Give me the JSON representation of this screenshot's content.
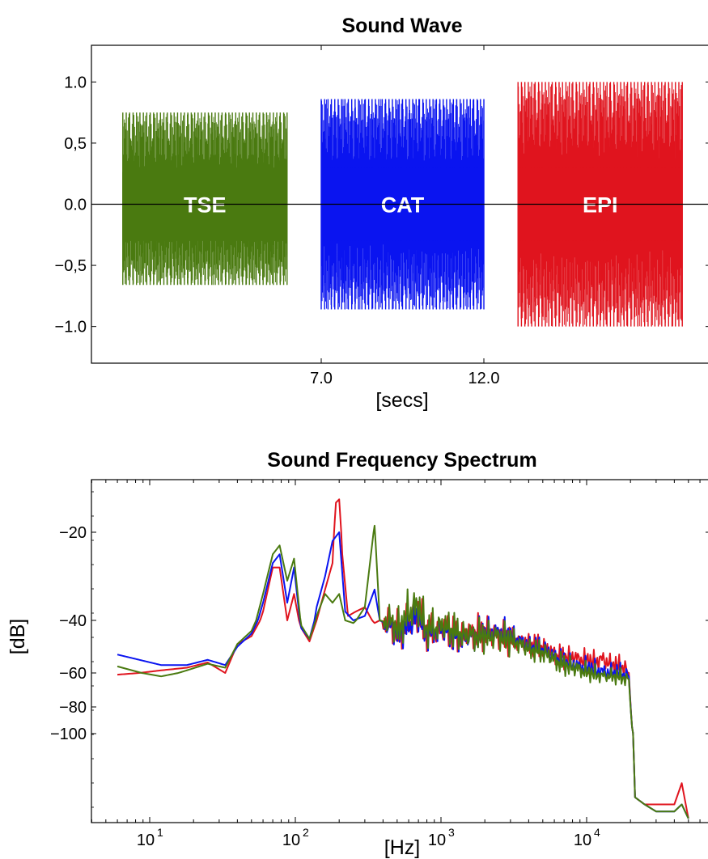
{
  "chart_data": [
    {
      "type": "line",
      "title": "Sound Wave",
      "xlabel": "[secs]",
      "ylabel": "",
      "ylim": [
        -1.3,
        1.3
      ],
      "x_ticks": [
        {
          "value": 7.0,
          "label": "7.0"
        },
        {
          "value": 12.0,
          "label": "12.0"
        }
      ],
      "y_ticks": [
        {
          "value": 1.0,
          "label": "1.0"
        },
        {
          "value": 0.5,
          "label": "0,5"
        },
        {
          "value": 0.0,
          "label": "0.0"
        },
        {
          "value": -0.5,
          "label": "−0,5"
        },
        {
          "value": -1.0,
          "label": "−1.0"
        }
      ],
      "series": [
        {
          "label": "TSE",
          "color": "#4a7a10",
          "t_start": 0.9,
          "t_end": 5.95,
          "max_amp": 0.75,
          "min_amp": -0.66
        },
        {
          "label": "CAT",
          "color": "#0a14f0",
          "t_start": 7.0,
          "t_end": 12.0,
          "max_amp": 0.86,
          "min_amp": -0.86
        },
        {
          "label": "EPI",
          "color": "#e0141e",
          "t_start": 13.05,
          "t_end": 18.1,
          "max_amp": 1.0,
          "min_amp": -1.0
        }
      ]
    },
    {
      "type": "line",
      "title": "Sound Frequency Spectrum",
      "xlabel": "[Hz]",
      "ylabel": "[dB]",
      "xscale": "log",
      "x_ticks": [
        {
          "value": 10,
          "label": "10",
          "exp": "1"
        },
        {
          "value": 100,
          "label": "10",
          "exp": "2"
        },
        {
          "value": 1000,
          "label": "10",
          "exp": "3"
        },
        {
          "value": 10000,
          "label": "10",
          "exp": "4"
        }
      ],
      "y_ticks": [
        {
          "value": -20,
          "label": "−20"
        },
        {
          "value": -40,
          "label": "−40"
        },
        {
          "value": -60,
          "label": "−60"
        },
        {
          "value": -80,
          "label": "−80"
        },
        {
          "value": -100,
          "label": "−100"
        }
      ],
      "series": [
        {
          "name": "TSE",
          "color": "#4a7a10",
          "points": [
            [
              6,
              -57.5
            ],
            [
              12,
              -62
            ],
            [
              18,
              -59
            ],
            [
              25,
              -56.5
            ],
            [
              33,
              -58
            ],
            [
              40,
              -49
            ],
            [
              50,
              -44
            ],
            [
              60,
              -34
            ],
            [
              70,
              -25
            ],
            [
              78,
              -23
            ],
            [
              88,
              -31
            ],
            [
              98,
              -26
            ],
            [
              110,
              -42
            ],
            [
              125,
              -47
            ],
            [
              140,
              -39
            ],
            [
              160,
              -34
            ],
            [
              180,
              -36
            ],
            [
              200,
              -34
            ],
            [
              220,
              -40
            ],
            [
              250,
              -41
            ],
            [
              300,
              -37
            ],
            [
              350,
              -18
            ],
            [
              380,
              -40
            ],
            [
              450,
              -41
            ],
            [
              520,
              -44
            ],
            [
              600,
              -38
            ],
            [
              700,
              -37
            ],
            [
              800,
              -44
            ],
            [
              1000,
              -42
            ],
            [
              1300,
              -45
            ],
            [
              1700,
              -46
            ],
            [
              2200,
              -46
            ],
            [
              3000,
              -47
            ],
            [
              4000,
              -51
            ],
            [
              5000,
              -52
            ],
            [
              6000,
              -55
            ],
            [
              7000,
              -57
            ],
            [
              8000,
              -58
            ],
            [
              9000,
              -59
            ],
            [
              10000,
              -60
            ],
            [
              11000,
              -61
            ],
            [
              13000,
              -62
            ],
            [
              15000,
              -62
            ],
            [
              18000,
              -63
            ],
            [
              19500,
              -64
            ],
            [
              20500,
              -95
            ],
            [
              21500,
              -109
            ],
            [
              25000,
              -110
            ],
            [
              30000,
              -111
            ],
            [
              40000,
              -111
            ],
            [
              45000,
              -110
            ],
            [
              50000,
              -112
            ]
          ]
        },
        {
          "name": "CAT",
          "color": "#0a14f0",
          "points": [
            [
              6,
              -53
            ],
            [
              12,
              -57
            ],
            [
              18,
              -57
            ],
            [
              25,
              -55
            ],
            [
              33,
              -57
            ],
            [
              40,
              -50
            ],
            [
              50,
              -45
            ],
            [
              60,
              -36
            ],
            [
              70,
              -27
            ],
            [
              78,
              -25
            ],
            [
              88,
              -36
            ],
            [
              98,
              -28
            ],
            [
              110,
              -43
            ],
            [
              125,
              -47
            ],
            [
              140,
              -37
            ],
            [
              160,
              -30
            ],
            [
              180,
              -22
            ],
            [
              200,
              -20
            ],
            [
              220,
              -38
            ],
            [
              250,
              -40
            ],
            [
              300,
              -39
            ],
            [
              350,
              -33
            ],
            [
              380,
              -40
            ],
            [
              450,
              -42
            ],
            [
              520,
              -45
            ],
            [
              600,
              -42
            ],
            [
              700,
              -39
            ],
            [
              800,
              -45
            ],
            [
              1000,
              -43
            ],
            [
              1300,
              -46
            ],
            [
              1700,
              -46
            ],
            [
              2200,
              -45
            ],
            [
              3000,
              -46
            ],
            [
              4000,
              -50
            ],
            [
              5000,
              -51
            ],
            [
              6000,
              -54
            ],
            [
              7000,
              -56
            ],
            [
              8000,
              -57
            ],
            [
              9000,
              -58
            ],
            [
              10000,
              -58
            ],
            [
              11000,
              -59
            ],
            [
              13000,
              -60
            ],
            [
              15000,
              -60
            ],
            [
              18000,
              -61
            ],
            [
              19500,
              -62
            ],
            [
              20500,
              -95
            ],
            [
              21500,
              -109
            ],
            [
              25000,
              -110
            ],
            [
              30000,
              -111
            ],
            [
              40000,
              -111
            ],
            [
              45000,
              -110
            ],
            [
              50000,
              -112
            ]
          ]
        },
        {
          "name": "EPI",
          "color": "#e0141e",
          "points": [
            [
              6,
              -61
            ],
            [
              12,
              -59
            ],
            [
              18,
              -58
            ],
            [
              25,
              -56
            ],
            [
              33,
              -60
            ],
            [
              40,
              -49
            ],
            [
              50,
              -46
            ],
            [
              60,
              -38
            ],
            [
              70,
              -28
            ],
            [
              78,
              -28
            ],
            [
              88,
              -40
            ],
            [
              98,
              -34
            ],
            [
              110,
              -43
            ],
            [
              125,
              -48
            ],
            [
              140,
              -40
            ],
            [
              160,
              -33
            ],
            [
              180,
              -27
            ],
            [
              190,
              -11
            ],
            [
              200,
              -10
            ],
            [
              210,
              -25
            ],
            [
              230,
              -39
            ],
            [
              260,
              -38
            ],
            [
              300,
              -37
            ],
            [
              350,
              -41
            ],
            [
              380,
              -40
            ],
            [
              450,
              -42
            ],
            [
              520,
              -45
            ],
            [
              600,
              -41
            ],
            [
              700,
              -39
            ],
            [
              800,
              -45
            ],
            [
              1000,
              -43
            ],
            [
              1300,
              -46
            ],
            [
              1700,
              -45
            ],
            [
              2200,
              -45
            ],
            [
              3000,
              -47
            ],
            [
              4000,
              -49
            ],
            [
              5000,
              -50
            ],
            [
              6000,
              -53
            ],
            [
              7000,
              -54
            ],
            [
              8000,
              -54
            ],
            [
              9000,
              -55
            ],
            [
              10000,
              -55
            ],
            [
              11000,
              -56
            ],
            [
              13000,
              -55
            ],
            [
              15000,
              -57
            ],
            [
              18000,
              -58
            ],
            [
              19500,
              -60
            ],
            [
              20500,
              -95
            ],
            [
              21500,
              -109
            ],
            [
              25000,
              -110
            ],
            [
              30000,
              -110
            ],
            [
              40000,
              -110
            ],
            [
              45000,
              -107
            ],
            [
              50000,
              -112
            ]
          ]
        }
      ]
    }
  ]
}
